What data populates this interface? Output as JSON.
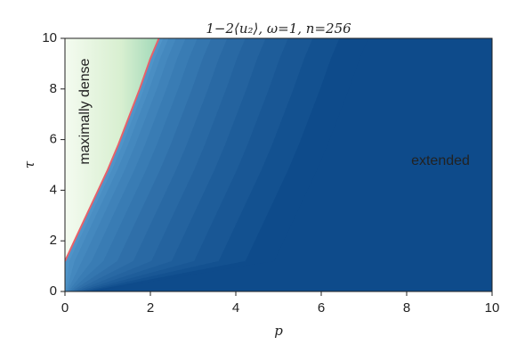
{
  "chart_data": {
    "type": "contour",
    "title": "1−2⟨u₂⟩, ω=1, n=256",
    "xlabel": "p",
    "ylabel": "τ",
    "xlim": [
      0,
      10
    ],
    "ylim": [
      0,
      10
    ],
    "xticks": [
      0,
      2,
      4,
      6,
      8,
      10
    ],
    "yticks": [
      0,
      2,
      4,
      6,
      8,
      10
    ],
    "annotations": [
      "maximally dense",
      "extended"
    ],
    "series": [
      {
        "color": "#e8606a",
        "x": [
          0,
          0.25,
          0.5,
          0.75,
          1,
          1.25,
          1.5,
          1.75,
          2,
          2.2
        ],
        "values": [
          1.2,
          2.1,
          3,
          3.9,
          4.8,
          5.8,
          6.9,
          8,
          9.2,
          10
        ]
      }
    ]
  }
}
